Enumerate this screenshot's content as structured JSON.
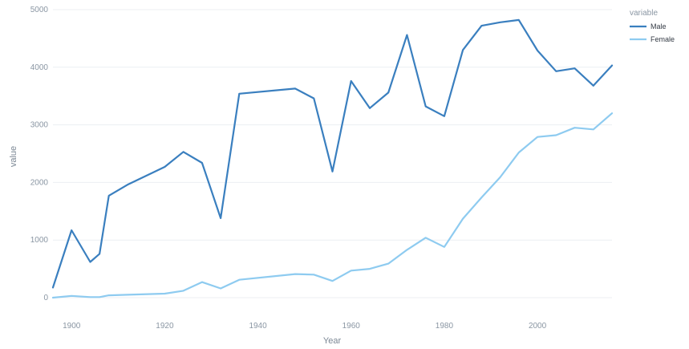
{
  "chart_data": {
    "type": "line",
    "title": "",
    "xlabel": "Year",
    "ylabel": "value",
    "xlim": [
      1896,
      2016
    ],
    "ylim": [
      0,
      5000
    ],
    "x_ticks": [
      1900,
      1920,
      1940,
      1960,
      1980,
      2000
    ],
    "y_ticks": [
      0,
      1000,
      2000,
      3000,
      4000,
      5000
    ],
    "grid": true,
    "legend": {
      "title": "variable",
      "position": "top-right"
    },
    "series": [
      {
        "name": "Male",
        "color": "#3a7fbf",
        "points": [
          [
            1896,
            176
          ],
          [
            1900,
            1170
          ],
          [
            1904,
            620
          ],
          [
            1906,
            760
          ],
          [
            1908,
            1770
          ],
          [
            1912,
            1960
          ],
          [
            1920,
            2270
          ],
          [
            1924,
            2530
          ],
          [
            1928,
            2340
          ],
          [
            1932,
            1380
          ],
          [
            1936,
            3540
          ],
          [
            1948,
            3630
          ],
          [
            1952,
            3460
          ],
          [
            1956,
            2190
          ],
          [
            1960,
            3760
          ],
          [
            1964,
            3290
          ],
          [
            1968,
            3560
          ],
          [
            1972,
            4560
          ],
          [
            1976,
            3320
          ],
          [
            1980,
            3150
          ],
          [
            1984,
            4300
          ],
          [
            1988,
            4720
          ],
          [
            1992,
            4780
          ],
          [
            1996,
            4820
          ],
          [
            2000,
            4290
          ],
          [
            2004,
            3930
          ],
          [
            2008,
            3980
          ],
          [
            2012,
            3680
          ],
          [
            2016,
            4030
          ]
        ]
      },
      {
        "name": "Female",
        "color": "#8ecbf0",
        "points": [
          [
            1896,
            0
          ],
          [
            1900,
            30
          ],
          [
            1904,
            10
          ],
          [
            1906,
            10
          ],
          [
            1908,
            40
          ],
          [
            1912,
            50
          ],
          [
            1920,
            70
          ],
          [
            1924,
            120
          ],
          [
            1928,
            270
          ],
          [
            1932,
            160
          ],
          [
            1936,
            310
          ],
          [
            1948,
            410
          ],
          [
            1952,
            400
          ],
          [
            1956,
            290
          ],
          [
            1960,
            470
          ],
          [
            1964,
            500
          ],
          [
            1968,
            590
          ],
          [
            1972,
            830
          ],
          [
            1976,
            1040
          ],
          [
            1980,
            880
          ],
          [
            1984,
            1370
          ],
          [
            1988,
            1740
          ],
          [
            1992,
            2090
          ],
          [
            1996,
            2520
          ],
          [
            2000,
            2790
          ],
          [
            2004,
            2820
          ],
          [
            2008,
            2950
          ],
          [
            2012,
            2920
          ],
          [
            2016,
            3200
          ]
        ]
      }
    ]
  }
}
